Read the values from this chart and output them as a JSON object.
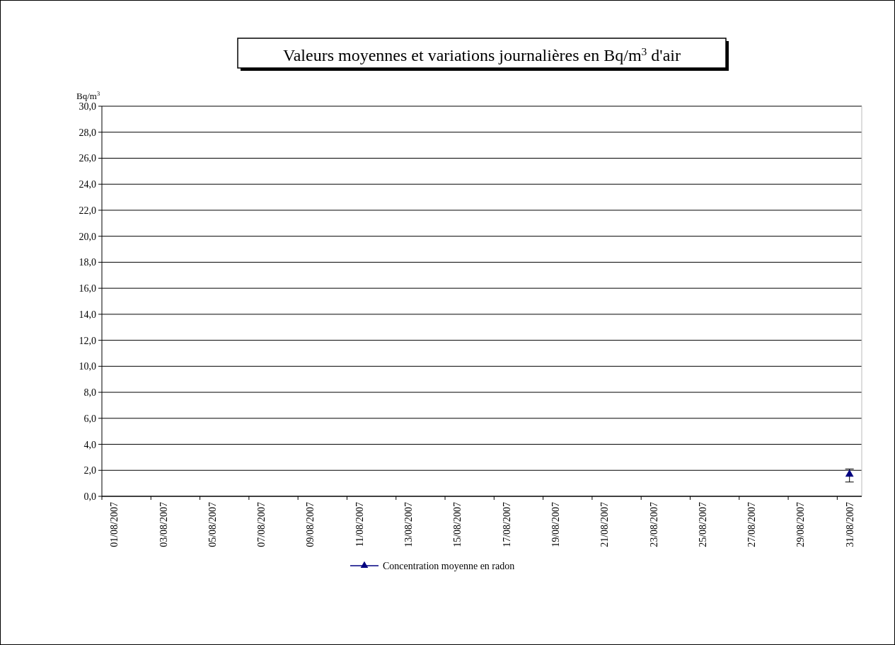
{
  "chart_data": {
    "type": "line",
    "title": "Valeurs moyennes et variations journalières en Bq/m$^{3}$ d'air",
    "ylabel": "Bq/m$^{3}$",
    "categories": [
      "01/08/2007",
      null,
      "03/08/2007",
      null,
      "05/08/2007",
      null,
      "07/08/2007",
      null,
      "09/08/2007",
      null,
      "11/08/2007",
      null,
      "13/08/2007",
      null,
      "15/08/2007",
      null,
      "17/08/2007",
      null,
      "19/08/2007",
      null,
      "21/08/2007",
      null,
      "23/08/2007",
      null,
      "25/08/2007",
      null,
      "27/08/2007",
      null,
      "29/08/2007",
      null,
      "31/08/2007"
    ],
    "series": [
      {
        "name": "Concentration moyenne en radon",
        "color": "#000080",
        "values": [
          null,
          null,
          null,
          null,
          null,
          null,
          null,
          null,
          null,
          null,
          null,
          null,
          null,
          null,
          null,
          null,
          null,
          null,
          null,
          null,
          null,
          null,
          null,
          null,
          null,
          null,
          null,
          null,
          null,
          null,
          1.7
        ],
        "errors": [
          null,
          null,
          null,
          null,
          null,
          null,
          null,
          null,
          null,
          null,
          null,
          null,
          null,
          null,
          null,
          null,
          null,
          null,
          null,
          null,
          null,
          null,
          null,
          null,
          null,
          null,
          null,
          null,
          null,
          null,
          [
            1.1,
            2.1
          ]
        ]
      }
    ],
    "ylim": [
      0,
      30
    ],
    "yticks": [
      {
        "value": 0,
        "label": "0,0"
      },
      {
        "value": 2,
        "label": "2,0"
      },
      {
        "value": 4,
        "label": "4,0"
      },
      {
        "value": 6,
        "label": "6,0"
      },
      {
        "value": 8,
        "label": "8,0"
      },
      {
        "value": 10,
        "label": "10,0"
      },
      {
        "value": 12,
        "label": "12,0"
      },
      {
        "value": 14,
        "label": "14,0"
      },
      {
        "value": 16,
        "label": "16,0"
      },
      {
        "value": 18,
        "label": "18,0"
      },
      {
        "value": 20,
        "label": "20,0"
      },
      {
        "value": 22,
        "label": "22,0"
      },
      {
        "value": 24,
        "label": "24,0"
      },
      {
        "value": 26,
        "label": "26,0"
      },
      {
        "value": 28,
        "label": "28,0"
      },
      {
        "value": 30,
        "label": "30,0"
      }
    ],
    "grid": "y",
    "legend": "bottom",
    "marker": "triangle",
    "line_style": "solid"
  }
}
